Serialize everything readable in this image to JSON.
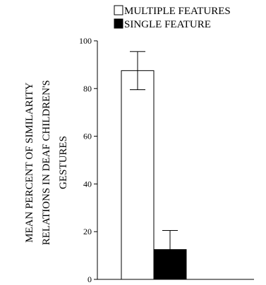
{
  "chart_data": {
    "type": "bar",
    "title": "",
    "xlabel": "",
    "ylabel_lines": [
      "MEAN PERCENT OF SIMILARITY",
      "RELATIONS IN DEAF CHILDREN'S",
      "GESTURES"
    ],
    "ylim": [
      0,
      100
    ],
    "yticks": [
      0,
      20,
      40,
      60,
      80,
      100
    ],
    "grid": false,
    "legend_position": "top",
    "series": [
      {
        "name": "MULTIPLE FEATURES",
        "value": 87.5,
        "error": 8,
        "color": "#ffffff"
      },
      {
        "name": "SINGLE FEATURE",
        "value": 12.5,
        "error": 8,
        "color": "#000000"
      }
    ]
  }
}
